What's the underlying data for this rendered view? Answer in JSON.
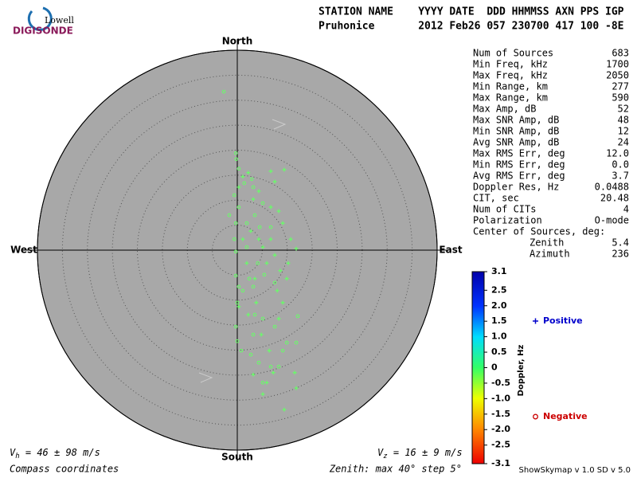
{
  "logo": {
    "top": "Lowell",
    "bottom": "DIGISONDE"
  },
  "header": {
    "line1": "STATION NAME    YYYY DATE  DDD HHMMSS AXN PPS IGP",
    "line2": "Pruhonice       2012 Feb26 057 230700 417 100 -8E"
  },
  "chart_data": {
    "type": "scatter",
    "directions": {
      "north": "North",
      "south": "South",
      "west": "West",
      "east": "East"
    },
    "xlim": [
      -40,
      40
    ],
    "ylim": [
      -40,
      40
    ],
    "rticks": [
      5,
      10,
      15,
      20,
      25,
      30,
      35,
      40
    ],
    "point_color": "#66ff66",
    "series": [
      {
        "name": "Positive",
        "color": "#0000cc",
        "marker": "plus",
        "x": [
          9.4,
          7.5,
          6.7,
          2.2,
          1.1,
          4.3,
          0.3,
          9.1,
          8.3,
          11.8,
          10.2,
          9.9,
          9.1,
          8.3,
          11.5,
          11.8,
          9.4,
          7.2,
          5.9,
          5.1,
          3.2,
          6.4,
          4.8,
          3.5,
          1.9,
          6.7,
          7.5,
          5.1,
          4.3,
          2.7,
          1.1,
          5.9,
          8.6,
          10.7,
          8.0,
          3.8,
          2.2,
          0.3,
          6.7,
          3.2
        ],
        "y": [
          16.1,
          13.7,
          15.8,
          15.5,
          14.7,
          11.8,
          12.6,
          5.4,
          7.8,
          0.3,
          -2.6,
          -5.7,
          -10.5,
          -13.7,
          -24.5,
          -27.6,
          -31.9,
          -24.5,
          -26.5,
          -28.8,
          -24.9,
          -20.1,
          -16.9,
          -5.7,
          -2.6,
          2.2,
          -1.0,
          0.6,
          2.2,
          3.8,
          2.2,
          -2.6,
          -4.1,
          2.2,
          -8.1,
          -10.5,
          -12.9,
          -11.3,
          8.6,
          10.2
        ]
      },
      {
        "name": "Negative",
        "color": "#cc0000",
        "marker": "circle",
        "x": [
          -2.7,
          -0.3,
          -0.2,
          0.3,
          -0.6,
          0.3,
          -1.6,
          -0.3,
          -0.6,
          -0.3,
          -0.3,
          0.3,
          0,
          -0.3,
          0,
          0.8,
          2.7,
          4.3,
          5.1,
          3.2,
          5.1,
          7.5,
          12.1,
          11.8,
          9.9,
          6.7,
          9.1,
          8.3,
          2.4,
          3.2,
          4.1,
          1.9,
          3.5,
          1.9,
          4.5,
          6.7,
          5.1,
          3.2,
          2.9,
          1.4,
          5.4,
          7.5,
          1.1,
          3.5
        ],
        "y": [
          31.7,
          19.4,
          18.2,
          16.3,
          11.0,
          8.6,
          7.0,
          5.4,
          2.2,
          -0.3,
          -5.1,
          -7.3,
          -10.5,
          -15.3,
          -18.2,
          -20.1,
          -20.9,
          -22.5,
          -26.5,
          -16.9,
          -13.7,
          -15.3,
          -13.2,
          -18.5,
          -18.5,
          -23.3,
          -20.1,
          -23.3,
          -5.7,
          -7.3,
          -2.6,
          0.6,
          7.0,
          5.4,
          4.6,
          4.6,
          9.4,
          12.6,
          14.2,
          13.4,
          -4.9,
          -6.5,
          -8.1,
          -12.9
        ]
      }
    ]
  },
  "stats": [
    [
      "Num of Sources",
      "683"
    ],
    [
      "Min Freq, kHz",
      "1700"
    ],
    [
      "Max Freq, kHz",
      "2050"
    ],
    [
      "Min Range, km",
      "277"
    ],
    [
      "Max Range, km",
      "590"
    ],
    [
      "Max Amp, dB",
      "52"
    ],
    [
      "Max SNR Amp, dB",
      "48"
    ],
    [
      "Min SNR Amp, dB",
      "12"
    ],
    [
      "Avg SNR Amp, dB",
      "24"
    ],
    [
      "Max RMS Err, deg",
      "12.0"
    ],
    [
      "Min RMS Err, deg",
      "0.0"
    ],
    [
      "Avg RMS Err, deg",
      "3.7"
    ],
    [
      "Doppler Res, Hz",
      "0.0488"
    ],
    [
      "CIT, sec",
      "20.48"
    ],
    [
      "Num of CITs",
      "4"
    ],
    [
      "Polarization",
      "O-mode"
    ]
  ],
  "center_title": "Center of Sources, deg:",
  "center": [
    [
      "Zenith",
      "5.4"
    ],
    [
      "Azimuth",
      "236"
    ]
  ],
  "colorbar": {
    "title": "Doppler, Hz",
    "lim": [
      -3.1,
      3.1
    ],
    "ticks": [
      3.1,
      2.5,
      {
        "value": 2,
        "label": "2.0"
      },
      1.5,
      {
        "value": 1,
        "label": "1.0"
      },
      0.5,
      0,
      -0.5,
      {
        "value": -1,
        "label": "-1.0"
      },
      -1.5,
      {
        "value": -2,
        "label": "-2.0"
      },
      -2.5,
      -3.1
    ]
  },
  "footer": {
    "vh_main": "V",
    "vh_sub": "h",
    "vh_rest": " = 46 ± 98 m/s",
    "vz_main": "V",
    "vz_sub": "z",
    "vz_rest": " = 16 ± 9 m/s",
    "coords": "Compass coordinates",
    "zenith": "Zenith: max 40°  step 5°",
    "version": "ShowSkymap v 1.0   SD v 5.0"
  }
}
